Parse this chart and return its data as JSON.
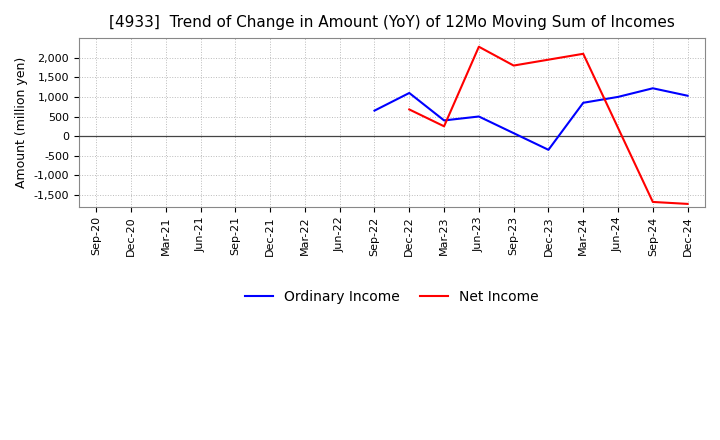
{
  "title": "[4933]  Trend of Change in Amount (YoY) of 12Mo Moving Sum of Incomes",
  "ylabel": "Amount (million yen)",
  "x_labels": [
    "Sep-20",
    "Dec-20",
    "Mar-21",
    "Jun-21",
    "Sep-21",
    "Dec-21",
    "Mar-22",
    "Jun-22",
    "Sep-22",
    "Dec-22",
    "Mar-23",
    "Jun-23",
    "Sep-23",
    "Dec-23",
    "Mar-24",
    "Jun-24",
    "Sep-24",
    "Dec-24"
  ],
  "ordinary_income": [
    null,
    null,
    null,
    null,
    null,
    null,
    null,
    null,
    650,
    1100,
    400,
    500,
    null,
    -350,
    850,
    1000,
    1220,
    1030
  ],
  "net_income": [
    null,
    null,
    null,
    null,
    null,
    null,
    null,
    null,
    null,
    680,
    250,
    2280,
    1800,
    1950,
    2100,
    null,
    -1680,
    -1730
  ],
  "ylim": [
    -1800,
    2500
  ],
  "yticks": [
    -1500,
    -1000,
    -500,
    0,
    500,
    1000,
    1500,
    2000
  ],
  "ordinary_income_color": "#0000ff",
  "net_income_color": "#ff0000",
  "legend_ordinary": "Ordinary Income",
  "legend_net": "Net Income",
  "background_color": "#ffffff",
  "grid_color": "#bbbbbb",
  "title_fontsize": 11,
  "ylabel_fontsize": 9,
  "tick_fontsize": 8
}
